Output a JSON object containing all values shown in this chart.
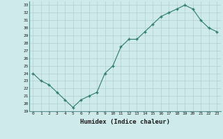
{
  "x": [
    0,
    1,
    2,
    3,
    4,
    5,
    6,
    7,
    8,
    9,
    10,
    11,
    12,
    13,
    14,
    15,
    16,
    17,
    18,
    19,
    20,
    21,
    22,
    23
  ],
  "y": [
    24.0,
    23.0,
    22.5,
    21.5,
    20.5,
    19.5,
    20.5,
    21.0,
    21.5,
    24.0,
    25.0,
    27.5,
    28.5,
    28.5,
    29.5,
    30.5,
    31.5,
    32.0,
    32.5,
    33.0,
    32.5,
    31.0,
    30.0,
    29.5
  ],
  "xlabel": "Humidex (Indice chaleur)",
  "ylim": [
    19,
    33.5
  ],
  "xlim": [
    -0.5,
    23.5
  ],
  "yticks": [
    19,
    20,
    21,
    22,
    23,
    24,
    25,
    26,
    27,
    28,
    29,
    30,
    31,
    32,
    33
  ],
  "xticks": [
    0,
    1,
    2,
    3,
    4,
    5,
    6,
    7,
    8,
    9,
    10,
    11,
    12,
    13,
    14,
    15,
    16,
    17,
    18,
    19,
    20,
    21,
    22,
    23
  ],
  "line_color": "#2d7a6e",
  "marker_color": "#2d7a6e",
  "bg_color": "#ceeaea",
  "grid_color": "#b0d0d0",
  "tick_label_color": "#1a1a1a",
  "xlabel_color": "#1a1a1a"
}
